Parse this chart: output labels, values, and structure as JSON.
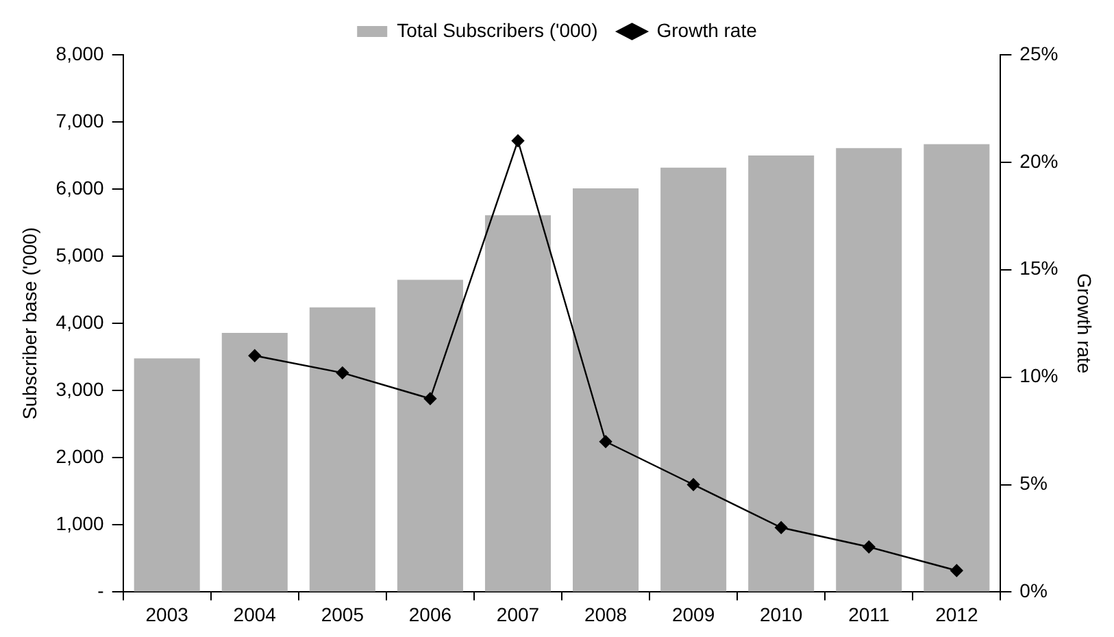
{
  "chart_data": {
    "type": "bar",
    "categories": [
      "2003",
      "2004",
      "2005",
      "2006",
      "2007",
      "2008",
      "2009",
      "2010",
      "2011",
      "2012"
    ],
    "series": [
      {
        "name": "Total Subscribers ('000)",
        "color": "#b2b2b2",
        "values": [
          3480,
          3860,
          4240,
          4650,
          5610,
          6010,
          6320,
          6500,
          6610,
          6670
        ]
      },
      {
        "name": "Growth rate",
        "type": "line",
        "axis": "y2",
        "color": "#000000",
        "values": [
          null,
          11.0,
          10.2,
          9.0,
          21.0,
          7.0,
          5.0,
          3.0,
          2.1,
          1.0
        ]
      }
    ],
    "ylabel": "Subscriber base ('000)",
    "y2label": "Growth rate",
    "ylim": [
      0,
      8000
    ],
    "yticks": [
      {
        "value": 0,
        "label": "-"
      },
      {
        "value": 1000,
        "label": "1,000"
      },
      {
        "value": 2000,
        "label": "2,000"
      },
      {
        "value": 3000,
        "label": "3,000"
      },
      {
        "value": 4000,
        "label": "4,000"
      },
      {
        "value": 5000,
        "label": "5,000"
      },
      {
        "value": 6000,
        "label": "6,000"
      },
      {
        "value": 7000,
        "label": "7,000"
      },
      {
        "value": 8000,
        "label": "8,000"
      }
    ],
    "y2lim": [
      0,
      25
    ],
    "y2ticks": [
      {
        "value": 0,
        "label": "0%"
      },
      {
        "value": 5,
        "label": "5%"
      },
      {
        "value": 10,
        "label": "10%"
      },
      {
        "value": 15,
        "label": "15%"
      },
      {
        "value": 20,
        "label": "20%"
      },
      {
        "value": 25,
        "label": "25%"
      }
    ],
    "legend": "top",
    "grid": false,
    "marker": "diamond"
  }
}
